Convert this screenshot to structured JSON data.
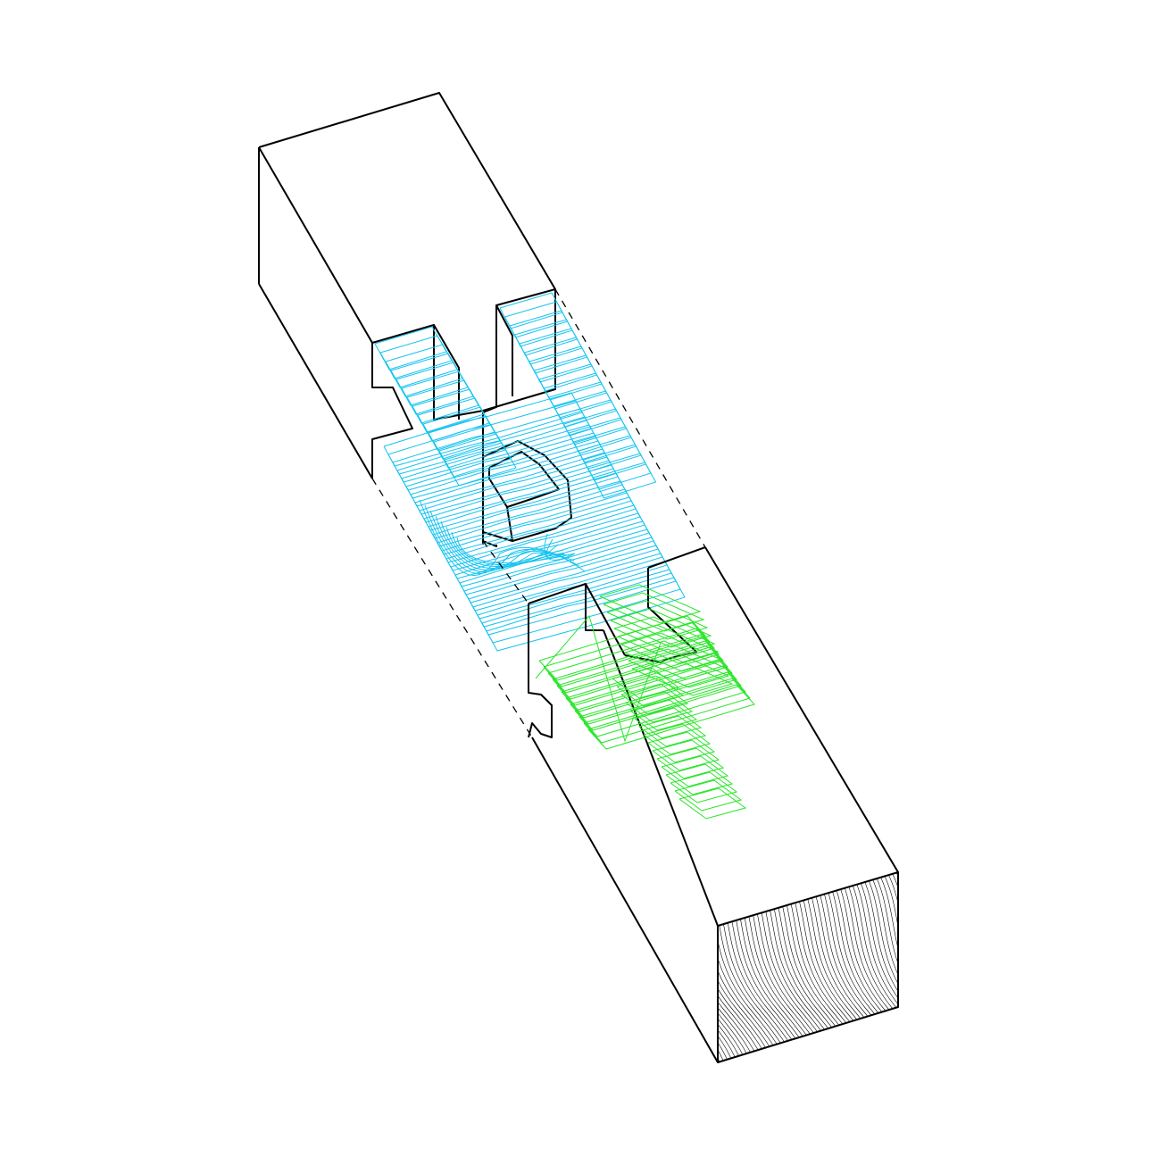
{
  "diagram": {
    "kind": "exploded axonometric timber joint",
    "parts": [
      {
        "id": "upper-beam",
        "toolpath_color": "#16c4f0"
      },
      {
        "id": "lower-beam",
        "toolpath_color": "#27e527"
      }
    ],
    "colors": {
      "outline": "#000000",
      "upper_toolpath": "#16c4f0",
      "lower_toolpath": "#27e527",
      "end_grain": "#000000",
      "background": "#ffffff"
    },
    "assembly_guides": "dashed",
    "end_face_hatch": "wood-grain"
  }
}
